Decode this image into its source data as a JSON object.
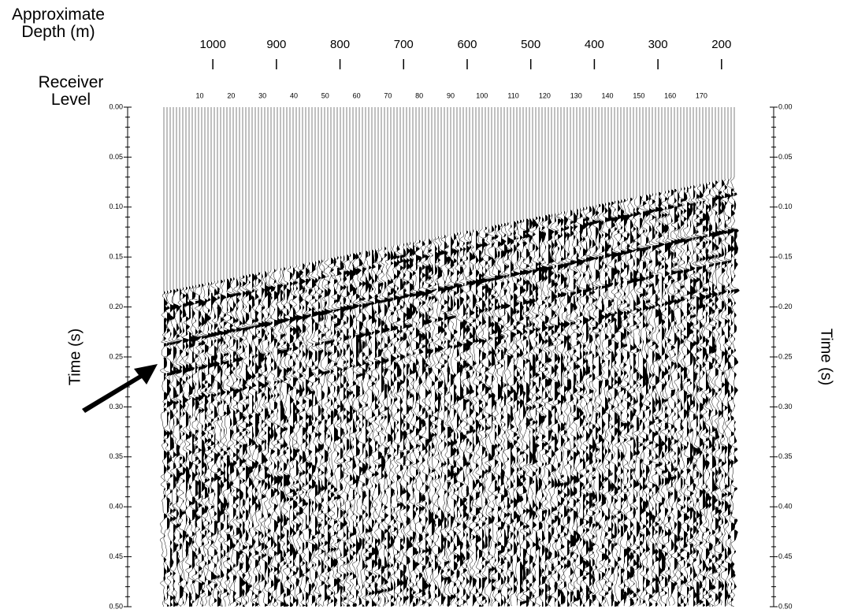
{
  "chart_data": {
    "type": "seismic",
    "x2_label": "Approximate Depth (m)",
    "x_label": "Receiver Level",
    "y_label": "Time (s)",
    "x2lim": [
      1134,
      118
    ],
    "x2ticks": [
      1000,
      900,
      800,
      700,
      600,
      500,
      400,
      300,
      200
    ],
    "xlim": [
      -13,
      193
    ],
    "xticks": [
      10,
      20,
      30,
      40,
      50,
      60,
      70,
      80,
      90,
      100,
      110,
      120,
      130,
      140,
      150,
      160,
      170
    ],
    "ylim": [
      0,
      0.5
    ],
    "yticks": [
      {
        "value": 0,
        "label": "0.00"
      },
      {
        "value": 0.05,
        "label": "0.05"
      },
      {
        "value": 0.1,
        "label": "0.10"
      },
      {
        "value": 0.15,
        "label": "0.15"
      },
      {
        "value": 0.2,
        "label": "0.20"
      },
      {
        "value": 0.25,
        "label": "0.25"
      },
      {
        "value": 0.3,
        "label": "0.30"
      },
      {
        "value": 0.35,
        "label": "0.35"
      },
      {
        "value": 0.4,
        "label": "0.40"
      },
      {
        "value": 0.45,
        "label": "0.45"
      },
      {
        "value": 0.5,
        "label": "0.50"
      }
    ]
  }
}
